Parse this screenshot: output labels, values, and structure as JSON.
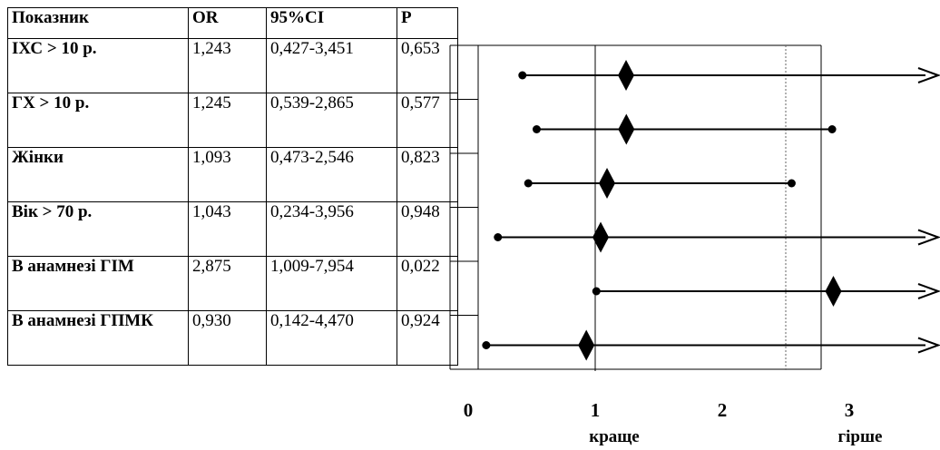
{
  "table": {
    "headers": [
      "Показник",
      "OR",
      "95%CI",
      "P"
    ],
    "rows": [
      {
        "name": "ІХС > 10 р.",
        "or": "1,243",
        "ci": "0,427-3,451",
        "p": "0,653"
      },
      {
        "name": "ГХ > 10 р.",
        "or": "1,245",
        "ci": "0,539-2,865",
        "p": "0,577"
      },
      {
        "name": "Жінки",
        "or": "1,093",
        "ci": "0,473-2,546",
        "p": "0,823"
      },
      {
        "name": "Вік > 70 р.",
        "or": "1,043",
        "ci": "0,234-3,956",
        "p": "0,948"
      },
      {
        "name": "В анамнезі ГІМ",
        "or": "2,875",
        "ci": "1,009-7,954",
        "p": "0,022"
      },
      {
        "name": "В анамнезі ГПМК",
        "or": "0,930",
        "ci": "0,142-4,470",
        "p": "0,924"
      }
    ]
  },
  "chart_data": {
    "type": "scatter",
    "title": "",
    "xlabel": "",
    "ylabel": "",
    "xlim": [
      0,
      3
    ],
    "x_ticks": [
      "0",
      "1",
      "2",
      "3"
    ],
    "x_tick_values": [
      0,
      1,
      2,
      3
    ],
    "reference_lines": [
      1,
      2.5
    ],
    "direction_labels": {
      "left": "краще",
      "right": "гірше"
    },
    "categories": [
      "ІХС > 10 р.",
      "ГХ > 10 р.",
      "Жінки",
      "Вік > 70 р.",
      "В анамнезі ГІМ",
      "В анамнезі ГПМК"
    ],
    "series": [
      {
        "points": [
          {
            "label": "ІХС > 10 р.",
            "estimate": 1.243,
            "lower": 0.427,
            "upper": 3.451,
            "arrow_right": true
          },
          {
            "label": "ГХ > 10 р.",
            "estimate": 1.245,
            "lower": 0.539,
            "upper": 2.865,
            "arrow_right": false
          },
          {
            "label": "Жінки",
            "estimate": 1.093,
            "lower": 0.473,
            "upper": 2.546,
            "arrow_right": false
          },
          {
            "label": "Вік > 70 р.",
            "estimate": 1.043,
            "lower": 0.234,
            "upper": 3.956,
            "arrow_right": true
          },
          {
            "label": "В анамнезі ГІМ",
            "estimate": 2.875,
            "lower": 1.009,
            "upper": 7.954,
            "arrow_right": true
          },
          {
            "label": "В анамнезі ГПМК",
            "estimate": 0.93,
            "lower": 0.142,
            "upper": 4.47,
            "arrow_right": true
          }
        ]
      }
    ]
  }
}
